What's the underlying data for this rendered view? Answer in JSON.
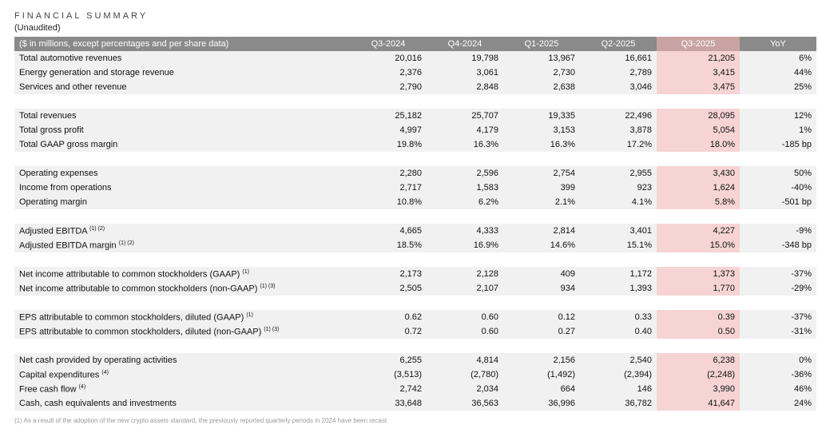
{
  "header": {
    "title": "FINANCIAL SUMMARY",
    "subtitle": "(Unaudited)"
  },
  "table": {
    "columns": [
      "($ in millions, except percentages and per share data)",
      "Q3-2024",
      "Q4-2024",
      "Q1-2025",
      "Q2-2025",
      "Q3-2025",
      "YoY"
    ],
    "groups": [
      [
        {
          "label": "Total automotive revenues",
          "sup": "",
          "values": [
            "20,016",
            "19,798",
            "13,967",
            "16,661",
            "21,205",
            "6%"
          ]
        },
        {
          "label": "Energy generation and storage revenue",
          "sup": "",
          "values": [
            "2,376",
            "3,061",
            "2,730",
            "2,789",
            "3,415",
            "44%"
          ]
        },
        {
          "label": "Services and other revenue",
          "sup": "",
          "values": [
            "2,790",
            "2,848",
            "2,638",
            "3,046",
            "3,475",
            "25%"
          ]
        }
      ],
      [
        {
          "label": "Total revenues",
          "sup": "",
          "values": [
            "25,182",
            "25,707",
            "19,335",
            "22,496",
            "28,095",
            "12%"
          ]
        },
        {
          "label": "Total gross profit",
          "sup": "",
          "values": [
            "4,997",
            "4,179",
            "3,153",
            "3,878",
            "5,054",
            "1%"
          ]
        },
        {
          "label": "Total GAAP gross margin",
          "sup": "",
          "values": [
            "19.8%",
            "16.3%",
            "16.3%",
            "17.2%",
            "18.0%",
            "-185 bp"
          ]
        }
      ],
      [
        {
          "label": "Operating expenses",
          "sup": "",
          "values": [
            "2,280",
            "2,596",
            "2,754",
            "2,955",
            "3,430",
            "50%"
          ]
        },
        {
          "label": "Income from operations",
          "sup": "",
          "values": [
            "2,717",
            "1,583",
            "399",
            "923",
            "1,624",
            "-40%"
          ]
        },
        {
          "label": "Operating margin",
          "sup": "",
          "values": [
            "10.8%",
            "6.2%",
            "2.1%",
            "4.1%",
            "5.8%",
            "-501 bp"
          ]
        }
      ],
      [
        {
          "label": "Adjusted EBITDA",
          "sup": "(1) (2)",
          "values": [
            "4,665",
            "4,333",
            "2,814",
            "3,401",
            "4,227",
            "-9%"
          ]
        },
        {
          "label": "Adjusted EBITDA margin",
          "sup": "(1) (2)",
          "values": [
            "18.5%",
            "16.9%",
            "14.6%",
            "15.1%",
            "15.0%",
            "-348 bp"
          ]
        }
      ],
      [
        {
          "label": "Net income attributable to common stockholders (GAAP)",
          "sup": "(1)",
          "values": [
            "2,173",
            "2,128",
            "409",
            "1,172",
            "1,373",
            "-37%"
          ]
        },
        {
          "label": "Net income attributable to common stockholders (non-GAAP)",
          "sup": "(1) (3)",
          "values": [
            "2,505",
            "2,107",
            "934",
            "1,393",
            "1,770",
            "-29%"
          ]
        }
      ],
      [
        {
          "label": "EPS attributable to common stockholders, diluted (GAAP)",
          "sup": "(1)",
          "values": [
            "0.62",
            "0.60",
            "0.12",
            "0.33",
            "0.39",
            "-37%"
          ]
        },
        {
          "label": "EPS attributable to common stockholders, diluted (non-GAAP)",
          "sup": "(1) (3)",
          "values": [
            "0.72",
            "0.60",
            "0.27",
            "0.40",
            "0.50",
            "-31%"
          ]
        }
      ],
      [
        {
          "label": "Net cash provided by operating activities",
          "sup": "",
          "values": [
            "6,255",
            "4,814",
            "2,156",
            "2,540",
            "6,238",
            "0%"
          ]
        },
        {
          "label": "Capital expenditures",
          "sup": "(4)",
          "values": [
            "(3,513)",
            "(2,780)",
            "(1,492)",
            "(2,394)",
            "(2,248)",
            "-36%"
          ]
        },
        {
          "label": "Free cash flow",
          "sup": "(4)",
          "values": [
            "2,742",
            "2,034",
            "664",
            "146",
            "3,990",
            "46%"
          ]
        },
        {
          "label": "Cash, cash equivalents and investments",
          "sup": "",
          "values": [
            "33,648",
            "36,563",
            "36,996",
            "36,782",
            "41,647",
            "24%"
          ]
        }
      ]
    ]
  },
  "footnote": "(1) As a result of the adoption of the new crypto assets standard, the previously reported quarterly periods in 2024 have been recast"
}
